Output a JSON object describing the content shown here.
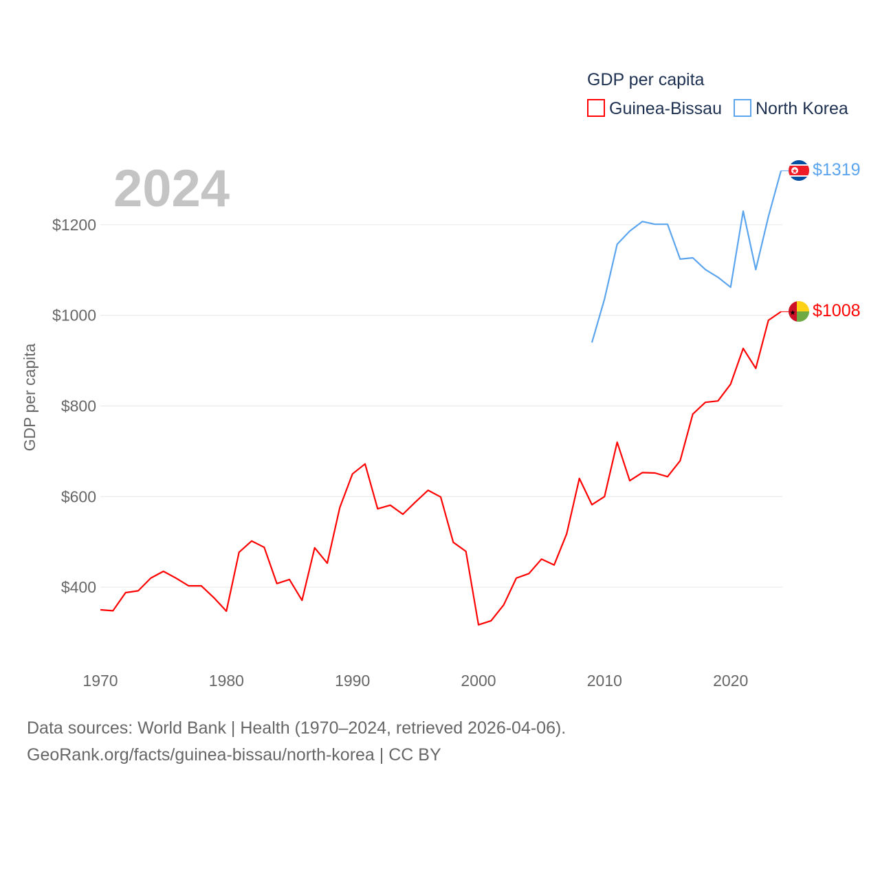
{
  "chart_data": {
    "type": "line",
    "title": "GDP per capita",
    "year_label": "2024",
    "ylabel": "GDP per capita",
    "xlabel": "",
    "xlim": [
      1970,
      2024
    ],
    "ylim": [
      300,
      1350
    ],
    "x_ticks": [
      1970,
      1980,
      1990,
      2000,
      2010,
      2020
    ],
    "y_ticks": [
      400,
      600,
      800,
      1000,
      1200
    ],
    "y_tick_labels": [
      "$400",
      "$600",
      "$800",
      "$1000",
      "$1200"
    ],
    "grid": true,
    "legend_position": "top-right",
    "series": [
      {
        "name": "Guinea-Bissau",
        "color": "#ff0000",
        "end_label": "$1008",
        "start_year": 1970,
        "values": [
          350,
          348,
          388,
          392,
          420,
          435,
          420,
          403,
          403,
          377,
          347,
          477,
          502,
          488,
          408,
          417,
          371,
          487,
          453,
          576,
          650,
          672,
          573,
          581,
          561,
          588,
          614,
          599,
          499,
          479,
          317,
          326,
          361,
          420,
          430,
          462,
          449,
          518,
          640,
          582,
          600,
          720,
          635,
          653,
          652,
          644,
          679,
          782,
          808,
          811,
          848,
          927,
          883,
          989,
          1008
        ]
      },
      {
        "name": "North Korea",
        "color": "#5ba4ee",
        "end_label": "$1319",
        "start_year": 2009,
        "values": [
          940,
          1036,
          1157,
          1186,
          1207,
          1201,
          1201,
          1124,
          1127,
          1101,
          1084,
          1062,
          1230,
          1101,
          1218,
          1319
        ]
      }
    ]
  },
  "footer": {
    "line1": "Data sources: World Bank | Health (1970–2024, retrieved 2026-04-06).",
    "line2": "GeoRank.org/facts/guinea-bissau/north-korea | CC BY"
  }
}
